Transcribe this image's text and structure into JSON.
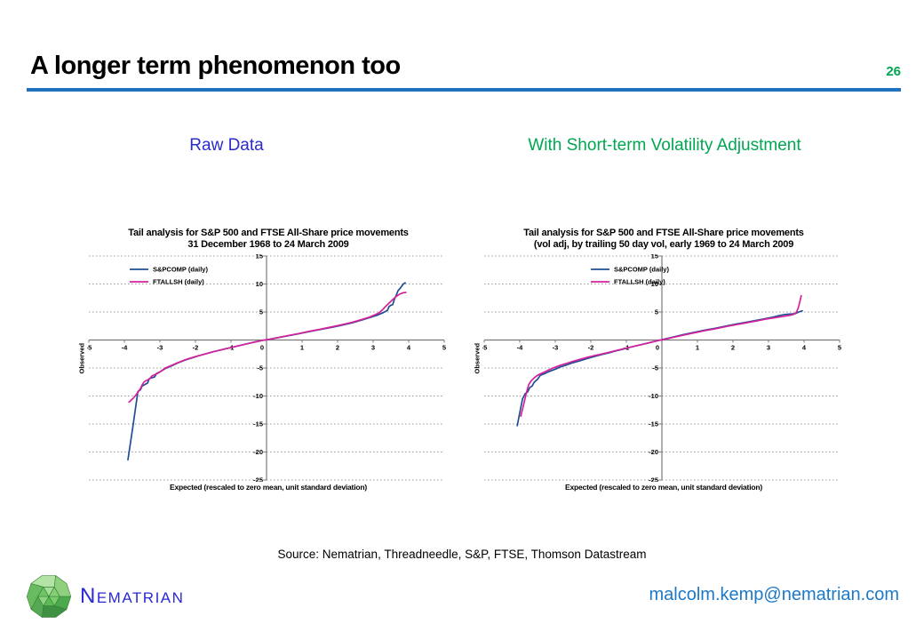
{
  "slide": {
    "title": "A longer term phenomenon too",
    "page_number": "26",
    "accent_rule_color": "#1F72C0",
    "page_number_color": "#00A651"
  },
  "panel_labels": {
    "left": {
      "text": "Raw Data",
      "color": "#2B2BCC"
    },
    "right": {
      "text": "With Short-term Volatility Adjustment",
      "color": "#00A651"
    }
  },
  "source_line": "Source: Nematrian, Threadneedle, S&P, FTSE, Thomson Datastream",
  "footer": {
    "logo_icon": "green-polyhedron-logo",
    "brand": "Nematrian",
    "brand_color": "#2929D6",
    "email": "malcolm.kemp@nematrian.com",
    "email_color": "#1C79C7"
  },
  "chart_data": [
    {
      "type": "line",
      "title_line1": "Tail analysis for S&P 500 and FTSE All-Share price movements",
      "title_line2": "31 December 1968 to 24 March 2009",
      "xlabel": "Expected (rescaled to zero mean, unit standard deviation)",
      "ylabel": "Observed",
      "xlim": [
        -5,
        5
      ],
      "ylim": [
        -25,
        15
      ],
      "xticks": [
        -5,
        -4,
        -3,
        -2,
        -1,
        0,
        1,
        2,
        3,
        4,
        5
      ],
      "yticks": [
        -25,
        -20,
        -15,
        -10,
        -5,
        0,
        5,
        10,
        15
      ],
      "grid": "horizontal-dotted",
      "legend_position": "inside-top-left",
      "legend_x_frac": 0.115,
      "series": [
        {
          "name": "S&PCOMP (daily)",
          "color": "#1F4E94",
          "points": [
            [
              -3.9,
              -21.4
            ],
            [
              -3.75,
              -15.0
            ],
            [
              -3.62,
              -9.2
            ],
            [
              -3.55,
              -8.9
            ],
            [
              -3.5,
              -8.2
            ],
            [
              -3.35,
              -7.7
            ],
            [
              -3.3,
              -6.9
            ],
            [
              -3.15,
              -6.6
            ],
            [
              -3.1,
              -6.0
            ],
            [
              -3.0,
              -5.7
            ],
            [
              -2.85,
              -5.1
            ],
            [
              -2.7,
              -4.7
            ],
            [
              -2.5,
              -4.1
            ],
            [
              -2.3,
              -3.6
            ],
            [
              -2.1,
              -3.2
            ],
            [
              -1.9,
              -2.8
            ],
            [
              -1.7,
              -2.45
            ],
            [
              -1.5,
              -2.1
            ],
            [
              -1.3,
              -1.8
            ],
            [
              -1.1,
              -1.5
            ],
            [
              -0.9,
              -1.2
            ],
            [
              -0.7,
              -0.9
            ],
            [
              -0.5,
              -0.6
            ],
            [
              -0.3,
              -0.3
            ],
            [
              -0.1,
              -0.05
            ],
            [
              0.1,
              0.15
            ],
            [
              0.3,
              0.4
            ],
            [
              0.6,
              0.75
            ],
            [
              0.9,
              1.1
            ],
            [
              1.2,
              1.5
            ],
            [
              1.5,
              1.85
            ],
            [
              1.8,
              2.2
            ],
            [
              2.1,
              2.6
            ],
            [
              2.4,
              3.05
            ],
            [
              2.7,
              3.6
            ],
            [
              2.9,
              4.0
            ],
            [
              3.1,
              4.4
            ],
            [
              3.25,
              4.8
            ],
            [
              3.35,
              5.1
            ],
            [
              3.4,
              5.3
            ],
            [
              3.45,
              6.0
            ],
            [
              3.5,
              6.2
            ],
            [
              3.55,
              6.3
            ],
            [
              3.6,
              7.3
            ],
            [
              3.65,
              8.0
            ],
            [
              3.7,
              8.8
            ],
            [
              3.78,
              9.4
            ],
            [
              3.85,
              10.0
            ],
            [
              3.9,
              10.2
            ]
          ]
        },
        {
          "name": "FTALLSH (daily)",
          "color": "#D5219C",
          "points": [
            [
              -3.87,
              -11.1
            ],
            [
              -3.75,
              -10.4
            ],
            [
              -3.65,
              -9.6
            ],
            [
              -3.55,
              -8.7
            ],
            [
              -3.5,
              -8.0
            ],
            [
              -3.45,
              -7.5
            ],
            [
              -3.38,
              -7.2
            ],
            [
              -3.3,
              -7.0
            ],
            [
              -3.22,
              -6.4
            ],
            [
              -3.15,
              -6.2
            ],
            [
              -3.05,
              -5.9
            ],
            [
              -2.95,
              -5.5
            ],
            [
              -2.85,
              -5.0
            ],
            [
              -2.7,
              -4.6
            ],
            [
              -2.5,
              -4.05
            ],
            [
              -2.3,
              -3.55
            ],
            [
              -2.1,
              -3.15
            ],
            [
              -1.9,
              -2.8
            ],
            [
              -1.7,
              -2.45
            ],
            [
              -1.5,
              -2.1
            ],
            [
              -1.3,
              -1.8
            ],
            [
              -1.1,
              -1.5
            ],
            [
              -0.9,
              -1.2
            ],
            [
              -0.7,
              -0.9
            ],
            [
              -0.5,
              -0.6
            ],
            [
              -0.3,
              -0.32
            ],
            [
              -0.1,
              -0.05
            ],
            [
              0.1,
              0.15
            ],
            [
              0.3,
              0.42
            ],
            [
              0.6,
              0.78
            ],
            [
              0.9,
              1.15
            ],
            [
              1.2,
              1.55
            ],
            [
              1.5,
              1.9
            ],
            [
              1.8,
              2.3
            ],
            [
              2.1,
              2.7
            ],
            [
              2.4,
              3.15
            ],
            [
              2.7,
              3.7
            ],
            [
              2.9,
              4.1
            ],
            [
              3.05,
              4.5
            ],
            [
              3.15,
              4.8
            ],
            [
              3.25,
              5.3
            ],
            [
              3.35,
              6.0
            ],
            [
              3.45,
              6.6
            ],
            [
              3.55,
              7.2
            ],
            [
              3.65,
              7.8
            ],
            [
              3.75,
              8.2
            ],
            [
              3.85,
              8.45
            ],
            [
              3.92,
              8.5
            ]
          ]
        }
      ]
    },
    {
      "type": "line",
      "title_line1": "Tail analysis for S&P 500 and FTSE All-Share price movements",
      "title_line2": "(vol adj, by trailing 50 day vol, early 1969 to 24 March 2009",
      "xlabel": "Expected (rescaled to zero mean, unit standard deviation)",
      "ylabel": "Observed",
      "xlim": [
        -5,
        5
      ],
      "ylim": [
        -25,
        15
      ],
      "xticks": [
        -5,
        -4,
        -3,
        -2,
        -1,
        0,
        1,
        2,
        3,
        4,
        5
      ],
      "yticks": [
        -25,
        -20,
        -15,
        -10,
        -5,
        0,
        5,
        10,
        15
      ],
      "grid": "horizontal-dotted",
      "legend_position": "inside-top-left",
      "legend_x_frac": 0.3,
      "series": [
        {
          "name": "S&PCOMP (daily)",
          "color": "#1F4E94",
          "points": [
            [
              -4.07,
              -15.3
            ],
            [
              -4.0,
              -13.0
            ],
            [
              -3.92,
              -10.5
            ],
            [
              -3.85,
              -9.6
            ],
            [
              -3.78,
              -9.3
            ],
            [
              -3.72,
              -8.5
            ],
            [
              -3.65,
              -8.2
            ],
            [
              -3.6,
              -7.6
            ],
            [
              -3.5,
              -7.0
            ],
            [
              -3.42,
              -6.3
            ],
            [
              -3.3,
              -6.0
            ],
            [
              -3.2,
              -5.7
            ],
            [
              -3.1,
              -5.45
            ],
            [
              -3.0,
              -5.2
            ],
            [
              -2.85,
              -4.8
            ],
            [
              -2.7,
              -4.5
            ],
            [
              -2.5,
              -4.05
            ],
            [
              -2.3,
              -3.7
            ],
            [
              -2.1,
              -3.3
            ],
            [
              -1.9,
              -2.95
            ],
            [
              -1.7,
              -2.6
            ],
            [
              -1.5,
              -2.3
            ],
            [
              -1.3,
              -1.95
            ],
            [
              -1.1,
              -1.65
            ],
            [
              -0.9,
              -1.3
            ],
            [
              -0.7,
              -1.0
            ],
            [
              -0.5,
              -0.7
            ],
            [
              -0.3,
              -0.42
            ],
            [
              -0.1,
              -0.1
            ],
            [
              0.1,
              0.2
            ],
            [
              0.3,
              0.5
            ],
            [
              0.6,
              0.95
            ],
            [
              0.9,
              1.35
            ],
            [
              1.2,
              1.75
            ],
            [
              1.5,
              2.1
            ],
            [
              1.8,
              2.5
            ],
            [
              2.1,
              2.85
            ],
            [
              2.4,
              3.2
            ],
            [
              2.7,
              3.55
            ],
            [
              2.9,
              3.8
            ],
            [
              3.1,
              4.05
            ],
            [
              3.3,
              4.35
            ],
            [
              3.45,
              4.55
            ],
            [
              3.55,
              4.6
            ],
            [
              3.65,
              4.65
            ],
            [
              3.75,
              4.7
            ],
            [
              3.85,
              5.0
            ],
            [
              3.95,
              5.2
            ]
          ]
        },
        {
          "name": "FTALLSH (daily)",
          "color": "#D5219C",
          "points": [
            [
              -3.97,
              -13.6
            ],
            [
              -3.9,
              -11.8
            ],
            [
              -3.82,
              -9.6
            ],
            [
              -3.75,
              -8.0
            ],
            [
              -3.68,
              -7.3
            ],
            [
              -3.6,
              -6.8
            ],
            [
              -3.5,
              -6.3
            ],
            [
              -3.4,
              -6.0
            ],
            [
              -3.3,
              -5.7
            ],
            [
              -3.2,
              -5.4
            ],
            [
              -3.1,
              -5.1
            ],
            [
              -3.0,
              -4.85
            ],
            [
              -2.85,
              -4.5
            ],
            [
              -2.7,
              -4.2
            ],
            [
              -2.5,
              -3.8
            ],
            [
              -2.3,
              -3.45
            ],
            [
              -2.1,
              -3.1
            ],
            [
              -1.9,
              -2.8
            ],
            [
              -1.7,
              -2.5
            ],
            [
              -1.5,
              -2.2
            ],
            [
              -1.3,
              -1.9
            ],
            [
              -1.1,
              -1.6
            ],
            [
              -0.9,
              -1.3
            ],
            [
              -0.7,
              -1.0
            ],
            [
              -0.5,
              -0.7
            ],
            [
              -0.3,
              -0.4
            ],
            [
              -0.1,
              -0.1
            ],
            [
              0.1,
              0.15
            ],
            [
              0.3,
              0.45
            ],
            [
              0.6,
              0.85
            ],
            [
              0.9,
              1.25
            ],
            [
              1.2,
              1.65
            ],
            [
              1.5,
              2.0
            ],
            [
              1.8,
              2.4
            ],
            [
              2.1,
              2.75
            ],
            [
              2.4,
              3.1
            ],
            [
              2.7,
              3.45
            ],
            [
              2.9,
              3.7
            ],
            [
              3.1,
              3.9
            ],
            [
              3.3,
              4.1
            ],
            [
              3.45,
              4.25
            ],
            [
              3.6,
              4.4
            ],
            [
              3.7,
              4.55
            ],
            [
              3.78,
              4.9
            ],
            [
              3.83,
              5.6
            ],
            [
              3.87,
              6.5
            ],
            [
              3.92,
              7.9
            ]
          ]
        }
      ]
    }
  ]
}
